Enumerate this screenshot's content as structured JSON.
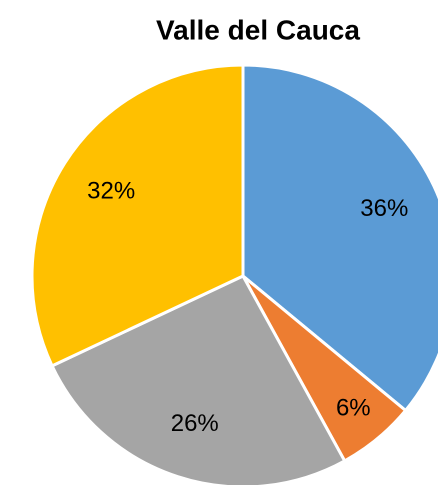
{
  "chart_data": {
    "type": "pie",
    "title": "Valle del Cauca",
    "values": [
      36,
      6,
      26,
      32
    ],
    "value_labels": [
      "36%",
      "6%",
      "26%",
      "32%"
    ],
    "colors": [
      "#5b9bd5",
      "#ed7d31",
      "#a5a5a5",
      "#ffc000"
    ]
  }
}
